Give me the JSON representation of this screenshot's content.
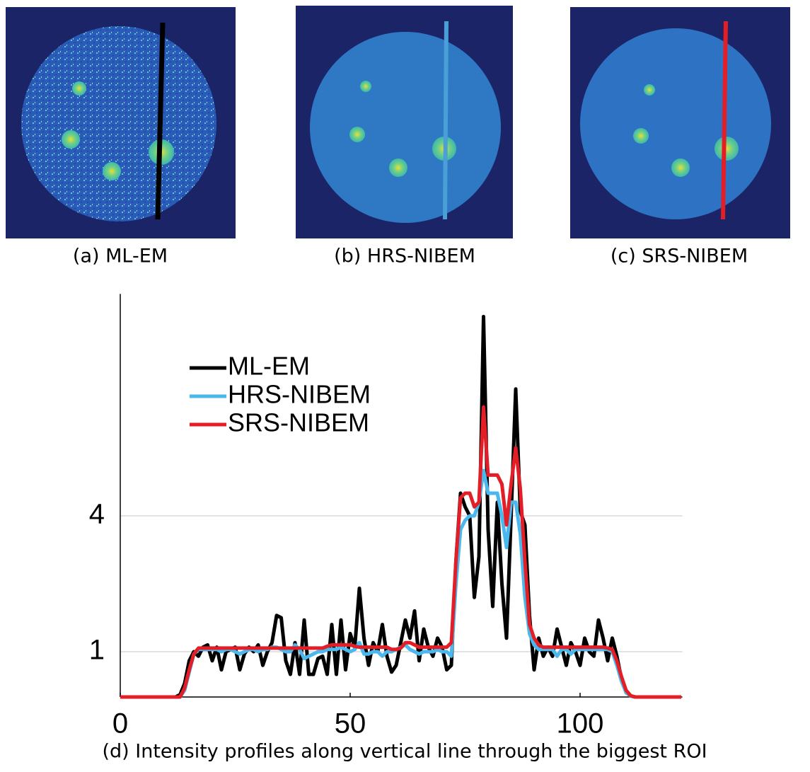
{
  "panels": [
    {
      "caption": "(a) ML-EM"
    },
    {
      "caption": "(b) HRS-NIBEM"
    },
    {
      "caption": "(c) SRS-NIBEM"
    }
  ],
  "chart_data": {
    "type": "line",
    "caption": "(d) Intensity profiles along vertical line through the biggest ROI",
    "x": [
      0,
      1,
      2,
      3,
      4,
      5,
      6,
      7,
      8,
      9,
      10,
      11,
      12,
      13,
      14,
      15,
      16,
      17,
      18,
      19,
      20,
      21,
      22,
      23,
      24,
      25,
      26,
      27,
      28,
      29,
      30,
      31,
      32,
      33,
      34,
      35,
      36,
      37,
      38,
      39,
      40,
      41,
      42,
      43,
      44,
      45,
      46,
      47,
      48,
      49,
      50,
      51,
      52,
      53,
      54,
      55,
      56,
      57,
      58,
      59,
      60,
      61,
      62,
      63,
      64,
      65,
      66,
      67,
      68,
      69,
      70,
      71,
      72,
      73,
      74,
      75,
      76,
      77,
      78,
      79,
      80,
      81,
      82,
      83,
      84,
      85,
      86,
      87,
      88,
      89,
      90,
      91,
      92,
      93,
      94,
      95,
      96,
      97,
      98,
      99,
      100,
      101,
      102,
      103,
      104,
      105,
      106,
      107,
      108,
      109,
      110,
      111,
      112,
      113,
      114,
      115,
      116,
      117,
      118,
      119,
      120,
      121,
      122
    ],
    "series": [
      {
        "name": "ML-EM",
        "color": "#000000",
        "values": [
          0,
          0,
          0,
          0,
          0,
          0,
          0,
          0,
          0,
          0,
          0,
          0,
          0,
          0.05,
          0.3,
          0.8,
          1.0,
          0.9,
          1.1,
          1.15,
          0.8,
          1.1,
          0.6,
          1.0,
          1.05,
          1.1,
          0.6,
          0.95,
          1.1,
          1.0,
          1.15,
          0.7,
          1.0,
          1.2,
          1.8,
          1.75,
          0.8,
          0.5,
          1.2,
          0.5,
          1.7,
          0.5,
          0.5,
          0.85,
          0.9,
          0.5,
          1.6,
          0.5,
          1.7,
          0.6,
          1.4,
          1.1,
          2.4,
          1.3,
          0.7,
          1.2,
          1.0,
          1.6,
          0.9,
          0.55,
          0.7,
          1.2,
          1.7,
          1.3,
          1.9,
          0.8,
          1.5,
          1.1,
          0.9,
          1.3,
          1.1,
          0.6,
          0.7,
          3.0,
          4.5,
          4.2,
          4.0,
          2.2,
          3.1,
          8.4,
          3.7,
          2.0,
          4.3,
          2.5,
          1.3,
          4.0,
          6.8,
          4.1,
          3.8,
          1.8,
          0.6,
          1.3,
          0.9,
          1.1,
          0.9,
          1.5,
          1.1,
          0.7,
          1.2,
          1.0,
          0.7,
          1.3,
          1.0,
          0.9,
          1.7,
          1.3,
          0.8,
          1.3,
          0.9,
          0.4,
          0.1,
          0.02,
          0,
          0,
          0,
          0,
          0,
          0,
          0,
          0,
          0,
          0,
          0
        ]
      },
      {
        "name": "HRS-NIBEM",
        "color": "#4ab8ec",
        "values": [
          0,
          0,
          0,
          0,
          0,
          0,
          0,
          0,
          0,
          0,
          0,
          0,
          0,
          0,
          0.15,
          0.55,
          0.95,
          1.05,
          1.05,
          1.05,
          1.05,
          1.05,
          1.0,
          1.05,
          1.05,
          1.0,
          0.95,
          1.0,
          1.05,
          1.05,
          1.0,
          1.05,
          1.05,
          1.1,
          1.1,
          1.05,
          1.0,
          1.0,
          1.15,
          1.05,
          0.85,
          0.9,
          0.95,
          1.0,
          1.0,
          1.05,
          1.05,
          1.05,
          1.1,
          1.05,
          1.0,
          1.05,
          1.2,
          0.95,
          0.95,
          1.0,
          1.0,
          0.9,
          1.0,
          1.0,
          1.05,
          1.1,
          1.15,
          1.05,
          1.0,
          0.95,
          1.0,
          1.0,
          1.0,
          1.05,
          1.0,
          1.0,
          0.9,
          2.5,
          3.7,
          3.9,
          4.0,
          4.0,
          4.3,
          5.0,
          4.5,
          4.5,
          4.5,
          4.0,
          3.3,
          4.3,
          4.3,
          3.6,
          2.2,
          1.4,
          1.15,
          1.05,
          1.05,
          1.05,
          1.05,
          0.9,
          1.05,
          1.05,
          0.95,
          1.05,
          1.05,
          1.05,
          1.05,
          1.05,
          1.05,
          1.05,
          1.05,
          1.0,
          0.7,
          0.35,
          0.1,
          0.02,
          0,
          0,
          0,
          0,
          0,
          0,
          0,
          0,
          0,
          0,
          0
        ]
      },
      {
        "name": "SRS-NIBEM",
        "color": "#e41e26",
        "values": [
          0,
          0,
          0,
          0,
          0,
          0,
          0,
          0,
          0,
          0,
          0,
          0,
          0,
          0,
          0.2,
          0.6,
          0.95,
          1.08,
          1.08,
          1.08,
          1.08,
          1.08,
          1.08,
          1.08,
          1.08,
          1.08,
          1.08,
          1.08,
          1.08,
          1.08,
          1.08,
          1.08,
          1.08,
          1.08,
          1.08,
          1.08,
          1.08,
          1.08,
          1.08,
          1.08,
          1.08,
          1.08,
          1.08,
          1.08,
          1.08,
          1.12,
          1.15,
          1.15,
          1.15,
          1.15,
          1.15,
          1.12,
          1.1,
          1.1,
          1.1,
          1.1,
          1.1,
          1.1,
          1.1,
          1.05,
          1.05,
          1.08,
          1.2,
          1.2,
          1.15,
          1.1,
          1.1,
          1.1,
          1.1,
          1.1,
          1.1,
          1.1,
          1.2,
          3.0,
          4.4,
          4.5,
          4.5,
          4.2,
          4.3,
          6.4,
          4.9,
          4.9,
          4.9,
          4.7,
          3.8,
          4.7,
          5.5,
          4.6,
          3.0,
          1.6,
          1.3,
          1.15,
          1.1,
          1.1,
          1.1,
          1.1,
          1.1,
          1.1,
          1.1,
          1.1,
          1.1,
          1.1,
          1.1,
          1.1,
          1.1,
          1.1,
          1.08,
          1.05,
          0.8,
          0.45,
          0.15,
          0.03,
          0,
          0,
          0,
          0,
          0,
          0,
          0,
          0,
          0,
          0,
          0
        ]
      }
    ],
    "xlim": [
      0,
      123
    ],
    "ylim": [
      0,
      8.9
    ],
    "xticks": [
      0,
      50,
      100
    ],
    "yticks": [
      1,
      4
    ],
    "grid": true
  }
}
